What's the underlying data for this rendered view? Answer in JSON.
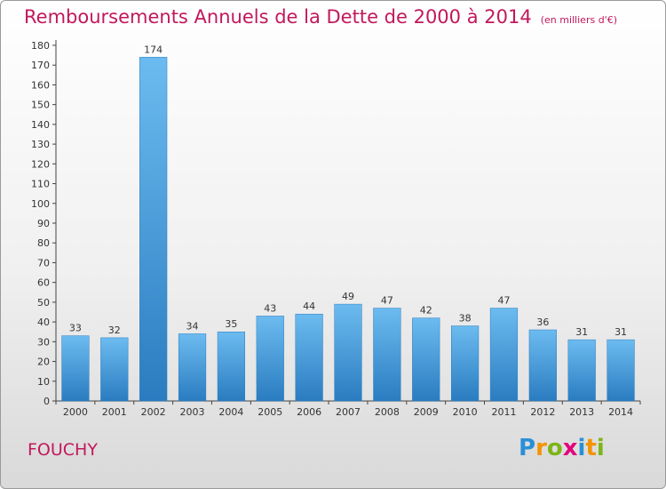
{
  "title": "Remboursements Annuels de la Dette de 2000 à 2014",
  "unit": "(en milliers d'€)",
  "commune": "FOUCHY",
  "logo": {
    "letters": [
      "P",
      "r",
      "o",
      "x",
      "i",
      "t",
      "i"
    ],
    "colors": [
      "#2a8fd6",
      "#f29400",
      "#7cb518",
      "#e3007d",
      "#2a8fd6",
      "#f29400",
      "#7cb518"
    ]
  },
  "colors": {
    "bar": "#3f9fe0",
    "bar_light": "#6cbbf0",
    "bar_dark": "#2a7cc0",
    "title": "#c2185b"
  },
  "chart_data": {
    "type": "bar",
    "categories": [
      "2000",
      "2001",
      "2002",
      "2003",
      "2004",
      "2005",
      "2006",
      "2007",
      "2008",
      "2009",
      "2010",
      "2011",
      "2012",
      "2013",
      "2014"
    ],
    "values": [
      33,
      32,
      174,
      34,
      35,
      43,
      44,
      49,
      47,
      42,
      38,
      47,
      36,
      31,
      31
    ],
    "ylim": [
      0,
      180
    ],
    "yticks": [
      0,
      10,
      20,
      30,
      40,
      50,
      60,
      70,
      80,
      90,
      100,
      110,
      120,
      130,
      140,
      150,
      160,
      170,
      180
    ],
    "grid": false,
    "xlabel": "",
    "ylabel": ""
  }
}
